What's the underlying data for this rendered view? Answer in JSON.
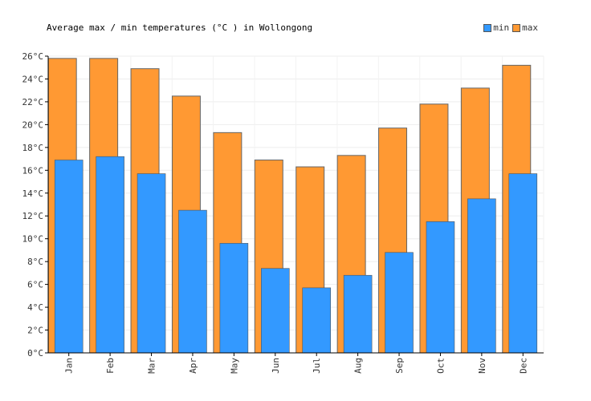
{
  "chart_data": {
    "type": "bar",
    "title": "Average max / min temperatures (°C ) in Wollongong",
    "categories": [
      "Jan",
      "Feb",
      "Mar",
      "Apr",
      "May",
      "Jun",
      "Jul",
      "Aug",
      "Sep",
      "Oct",
      "Nov",
      "Dec"
    ],
    "series": [
      {
        "name": "min",
        "color": "#3399ff",
        "values": [
          16.9,
          17.2,
          15.7,
          12.5,
          9.6,
          7.4,
          5.7,
          6.8,
          8.8,
          11.5,
          13.5,
          15.7
        ]
      },
      {
        "name": "max",
        "color": "#ff9933",
        "values": [
          25.8,
          25.8,
          24.9,
          22.5,
          19.3,
          16.9,
          16.3,
          17.3,
          19.7,
          21.8,
          23.2,
          25.2
        ]
      }
    ],
    "ylim": [
      0,
      26
    ],
    "yticks": [
      "0°C",
      "2°C",
      "4°C",
      "6°C",
      "8°C",
      "10°C",
      "12°C",
      "14°C",
      "16°C",
      "18°C",
      "20°C",
      "22°C",
      "24°C",
      "26°C"
    ],
    "grid": true,
    "legend_position": "top-right"
  }
}
